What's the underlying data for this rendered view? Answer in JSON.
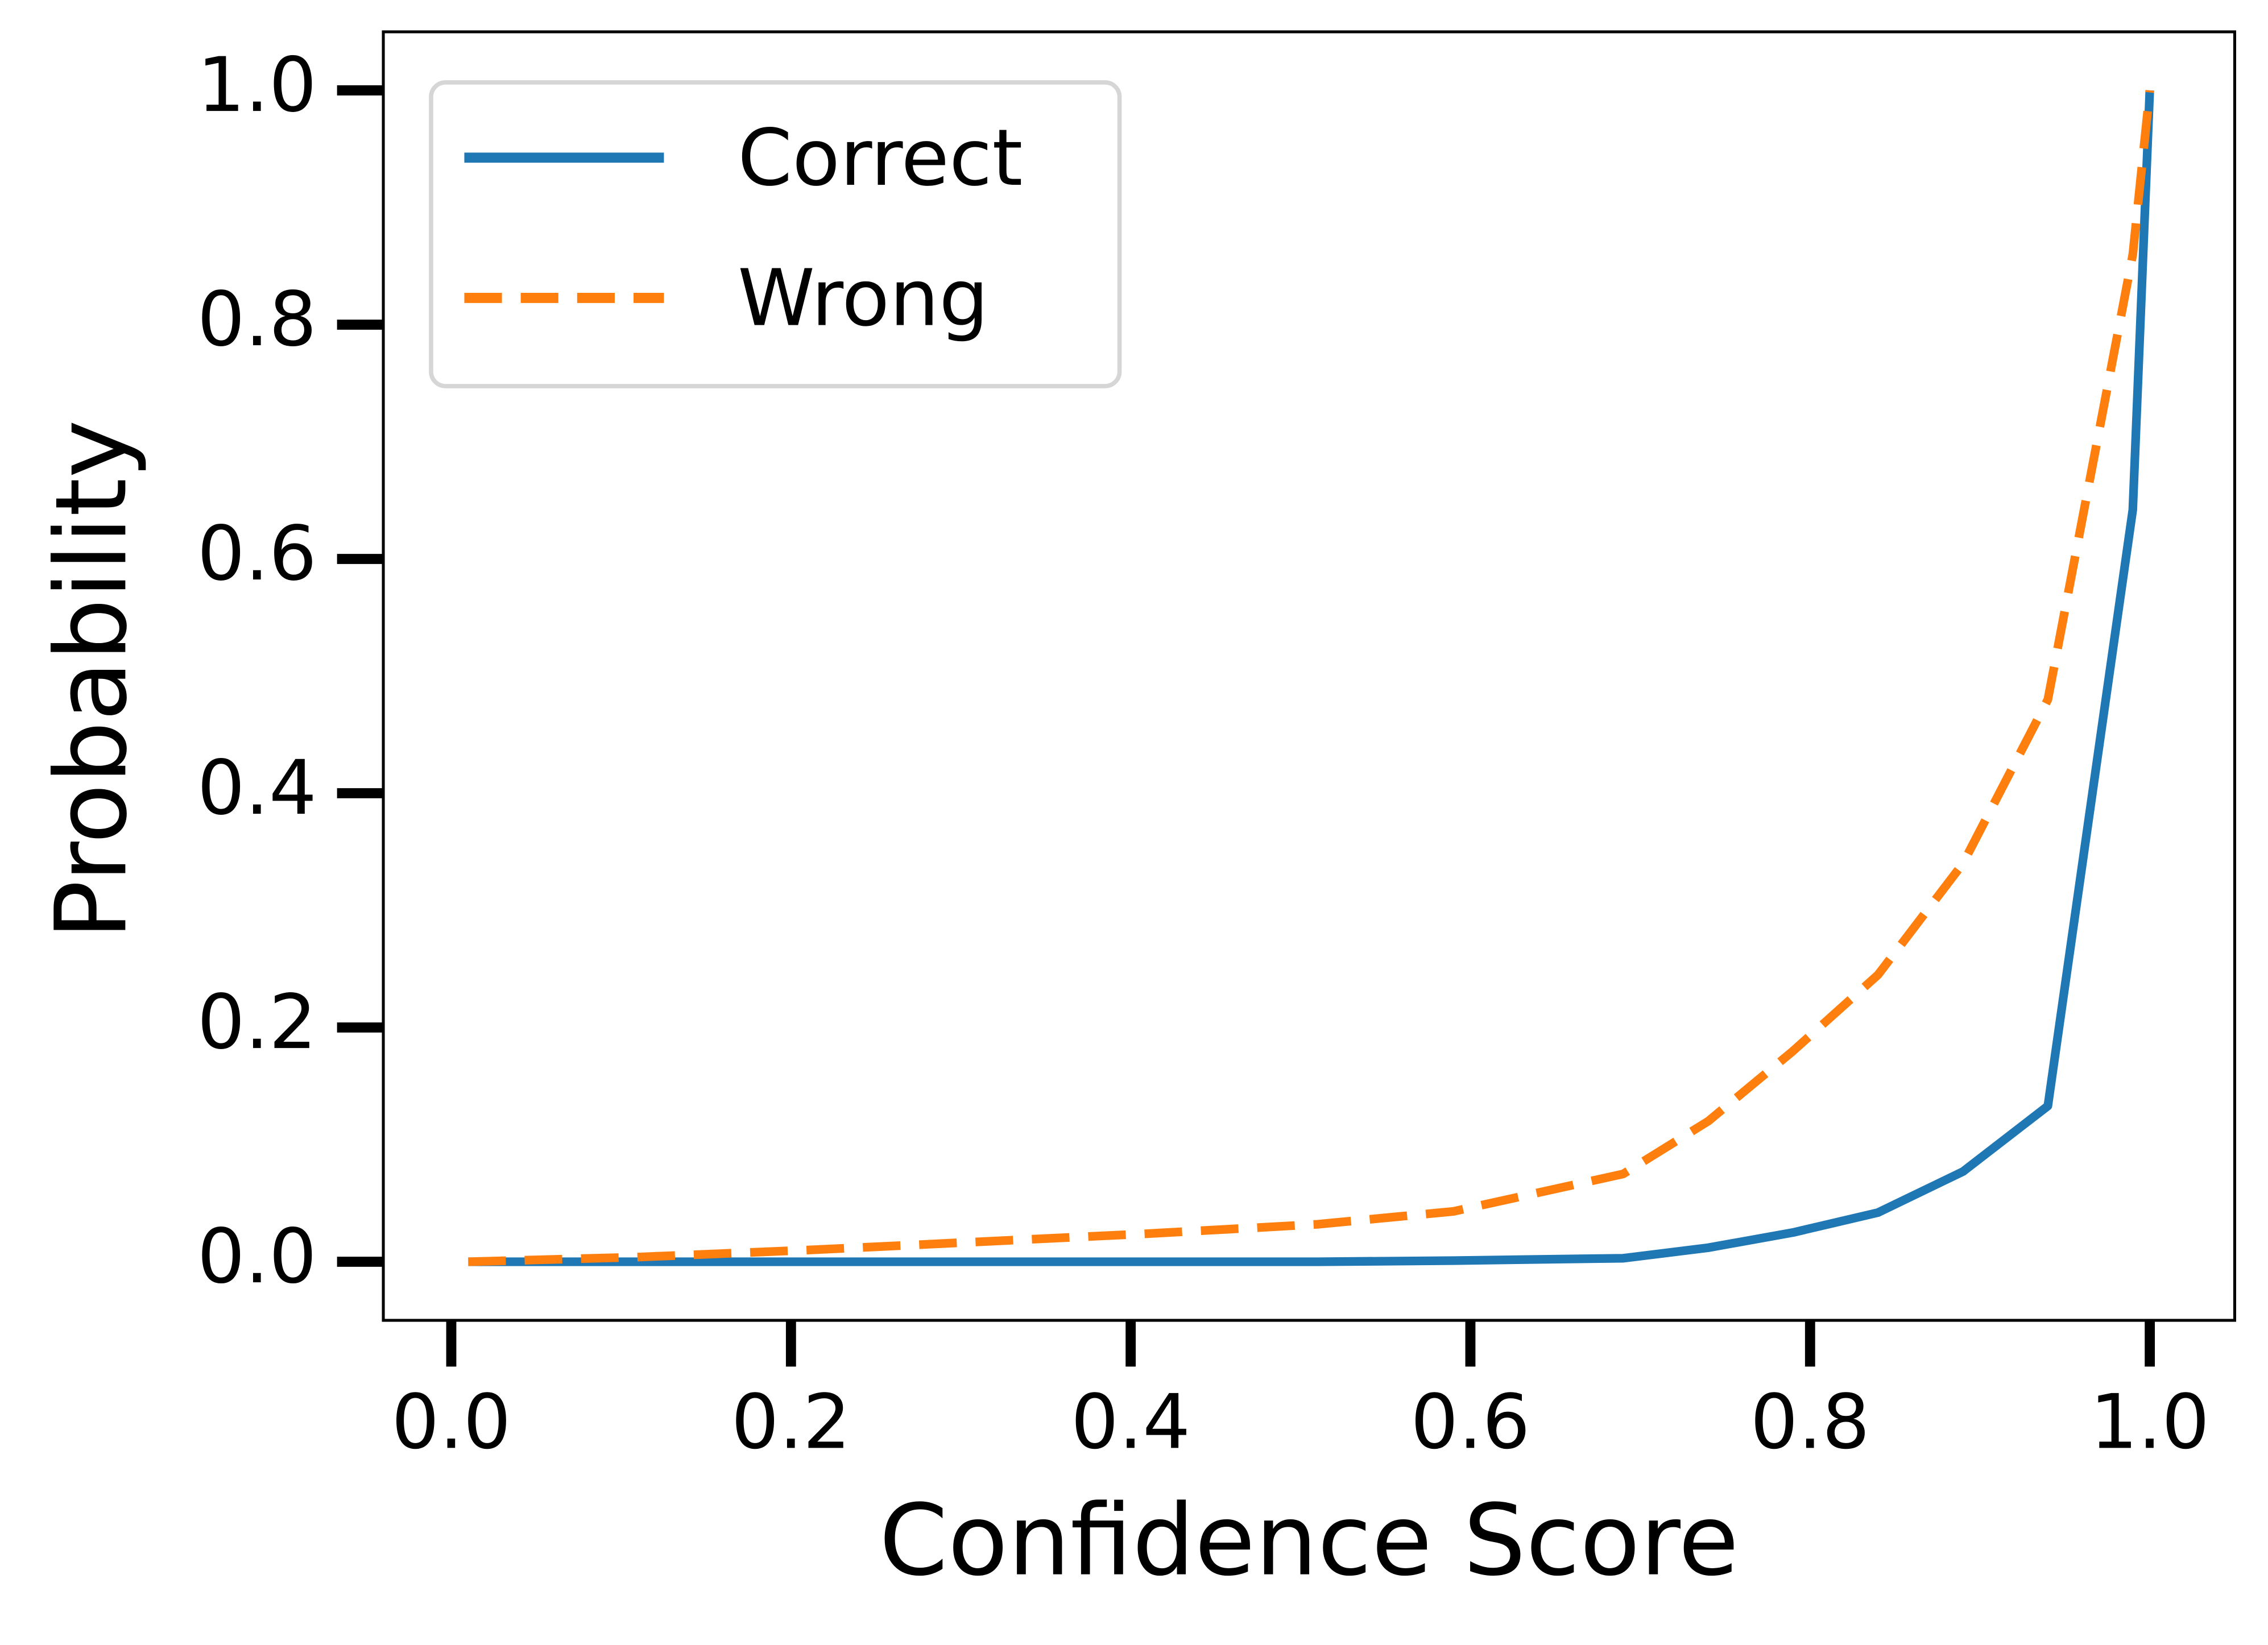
{
  "chart_data": {
    "type": "line",
    "xlabel": "Confidence Score",
    "ylabel": "Probability",
    "x": [
      0.01,
      0.11,
      0.21,
      0.31,
      0.41,
      0.51,
      0.59,
      0.69,
      0.74,
      0.79,
      0.84,
      0.89,
      0.94,
      0.99,
      1.0
    ],
    "series": [
      {
        "name": "Correct",
        "color": "#1f77b4",
        "dash": "solid",
        "values": [
          0,
          0,
          0,
          0,
          0,
          0,
          0.001,
          0.003,
          0.012,
          0.025,
          0.042,
          0.077,
          0.133,
          0.642,
          1.0
        ]
      },
      {
        "name": "Wrong",
        "color": "#ff7f0e",
        "dash": "dashed",
        "values": [
          0,
          0.004,
          0.01,
          0.017,
          0.024,
          0.032,
          0.043,
          0.075,
          0.12,
          0.18,
          0.245,
          0.34,
          0.48,
          0.86,
          1.0
        ]
      }
    ],
    "xlim": [
      -0.04,
      1.05
    ],
    "ylim": [
      -0.05,
      1.05
    ],
    "xticks": [
      {
        "value": 0,
        "label": "0.0"
      },
      {
        "value": 0.2,
        "label": "0.2"
      },
      {
        "value": 0.4,
        "label": "0.4"
      },
      {
        "value": 0.6,
        "label": "0.6"
      },
      {
        "value": 0.8,
        "label": "0.8"
      },
      {
        "value": 1,
        "label": "1.0"
      }
    ],
    "yticks": [
      {
        "value": 0,
        "label": "0.0"
      },
      {
        "value": 0.2,
        "label": "0.2"
      },
      {
        "value": 0.4,
        "label": "0.4"
      },
      {
        "value": 0.6,
        "label": "0.6"
      },
      {
        "value": 0.8,
        "label": "0.8"
      },
      {
        "value": 1,
        "label": "1.0"
      }
    ],
    "grid": false,
    "legend": "upper left"
  }
}
